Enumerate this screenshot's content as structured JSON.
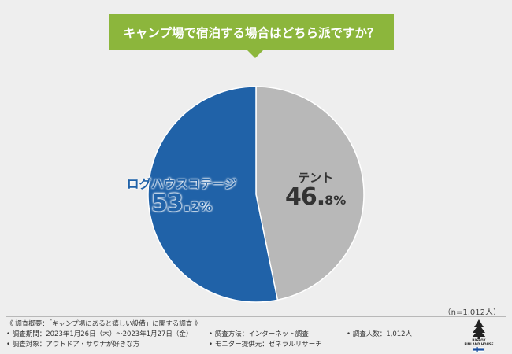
{
  "title": "キャンプ場で宿泊する場合はどちら派ですか？",
  "colors": {
    "banner": "#8cb63c",
    "log_house": "#2062a8",
    "tent": "#b8b8b8",
    "background": "#eeeeee"
  },
  "chart_data": {
    "type": "pie",
    "slices": [
      {
        "label": "テント",
        "value": 46.8,
        "pct_main": "46.",
        "pct_tail": "8%",
        "color": "#b8b8b8",
        "text_color": "#333333"
      },
      {
        "label": "ログハウスコテージ",
        "value": 53.2,
        "pct_main": "53.",
        "pct_tail": "2%",
        "color": "#2062a8",
        "text_color": "#2062a8"
      }
    ]
  },
  "sample_note": "（n=1,012人）",
  "footer": {
    "overview": "《 調査概要：「キャンプ場にあると嬉しい設備」に関する調査 》",
    "period": "• 調査期間：2023年1月26日（木）～2023年1月27日（金）",
    "target": "• 調査対象：アウトドア・サウナが好きな方",
    "method": "• 調査方法：インターネット調査",
    "provider": "• モニター提供元：ゼネラルリサーチ",
    "count": "• 調査人数：1,012人"
  },
  "logo": {
    "line1": "BIGBOX",
    "line2": "FINLAND HOUSE"
  }
}
